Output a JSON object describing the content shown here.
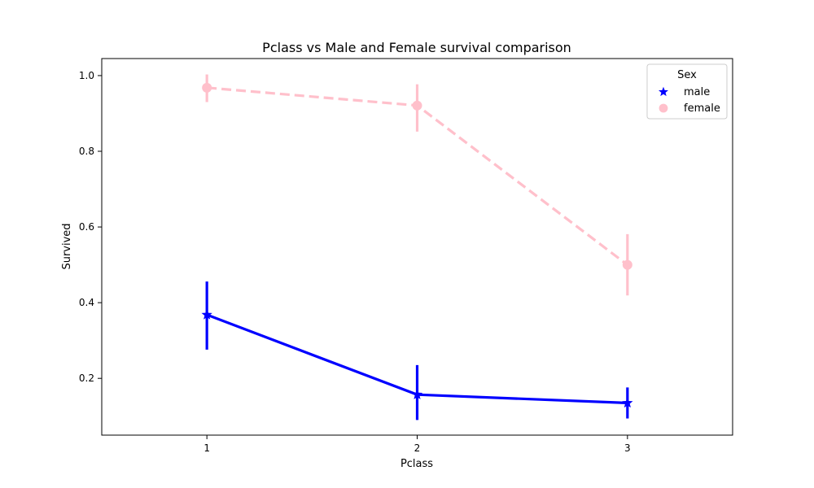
{
  "chart_data": {
    "type": "line",
    "title": "Pclass vs Male and Female survival comparison",
    "xlabel": "Pclass",
    "ylabel": "Survived",
    "categories": [
      "1",
      "2",
      "3"
    ],
    "ylim": [
      0.05,
      1.045
    ],
    "yticks": [
      0.2,
      0.4,
      0.6,
      0.8,
      1.0
    ],
    "ytick_labels": [
      "0.2",
      "0.4",
      "0.6",
      "0.8",
      "1.0"
    ],
    "legend": {
      "title": "Sex",
      "placement": "top-right"
    },
    "series": [
      {
        "name": "male",
        "values": [
          0.368,
          0.157,
          0.135
        ],
        "ci": [
          [
            0.276,
            0.456
          ],
          [
            0.09,
            0.235
          ],
          [
            0.094,
            0.176
          ]
        ],
        "color": "#0000ff",
        "marker": "star",
        "linestyle": "solid"
      },
      {
        "name": "female",
        "values": [
          0.968,
          0.921,
          0.5
        ],
        "ci": [
          [
            0.93,
            1.003
          ],
          [
            0.852,
            0.977
          ],
          [
            0.419,
            0.581
          ]
        ],
        "color": "#ffc0cb",
        "marker": "circle",
        "linestyle": "dashed"
      }
    ]
  }
}
